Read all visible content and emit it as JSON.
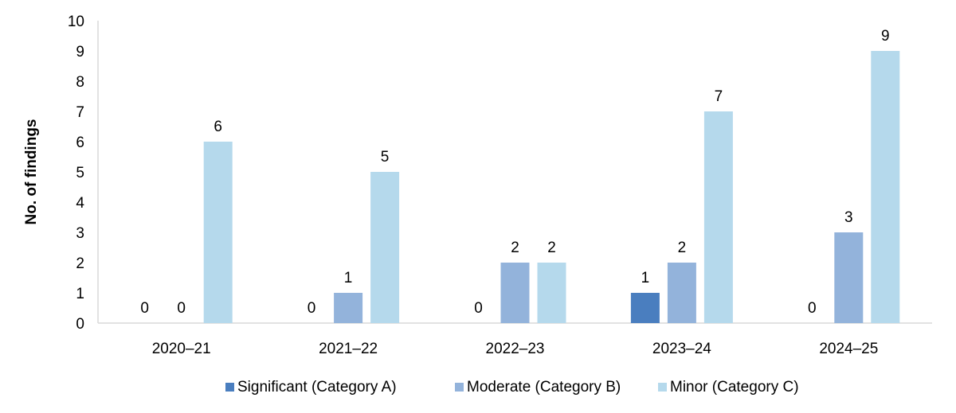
{
  "chart_data": {
    "type": "bar",
    "categories": [
      "2020–21",
      "2021–22",
      "2022–23",
      "2023–24",
      "2024–25"
    ],
    "series": [
      {
        "name": "Significant (Category A)",
        "values": [
          0,
          0,
          0,
          1,
          0
        ],
        "color": "#4a7ebf"
      },
      {
        "name": "Moderate (Category B)",
        "values": [
          0,
          1,
          2,
          2,
          3
        ],
        "color": "#93b3db"
      },
      {
        "name": "Minor (Category C)",
        "values": [
          6,
          5,
          2,
          7,
          9
        ],
        "color": "#b5d9ec"
      }
    ],
    "title": "",
    "xlabel": "",
    "ylabel": "No. of findings",
    "ylim": [
      0,
      10
    ],
    "yticks": [
      "0",
      "1",
      "2",
      "3",
      "4",
      "5",
      "6",
      "7",
      "8",
      "9",
      "10"
    ],
    "grid": false,
    "legend": "bottom",
    "axis_color": "#d9d9d9"
  }
}
